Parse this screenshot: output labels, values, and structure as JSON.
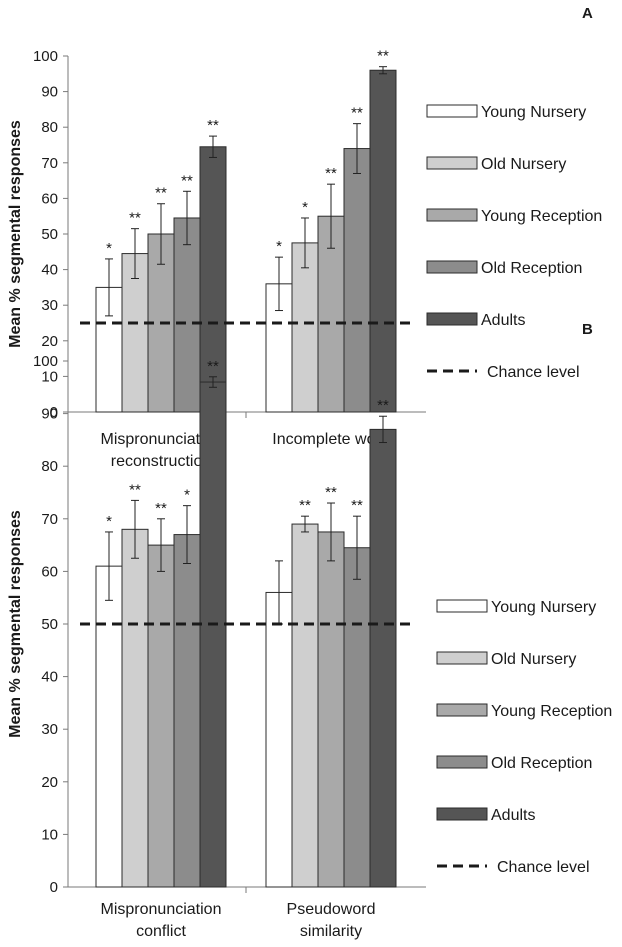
{
  "chart_data": [
    {
      "type": "bar",
      "panel_label": "A",
      "ylabel": "Mean % segmental responses",
      "ylim": [
        0,
        100
      ],
      "yticks": [
        0,
        10,
        20,
        30,
        40,
        50,
        60,
        70,
        80,
        90,
        100
      ],
      "categories": [
        [
          "Mispronunciation",
          "reconstruction"
        ],
        [
          "Incomplete word"
        ]
      ],
      "chance_level": 25,
      "legend_position": "right",
      "series": [
        {
          "name": "Young Nursery",
          "color": "#ffffff",
          "values": [
            35,
            36
          ],
          "errors": [
            8,
            7.5
          ],
          "sig": [
            "*",
            "*"
          ]
        },
        {
          "name": "Old Nursery",
          "color": "#cfcfcf",
          "values": [
            44.5,
            47.5
          ],
          "errors": [
            7,
            7
          ],
          "sig": [
            "**",
            "*"
          ]
        },
        {
          "name": "Young Reception",
          "color": "#a9a9a9",
          "values": [
            50,
            55
          ],
          "errors": [
            8.5,
            9
          ],
          "sig": [
            "**",
            "**"
          ]
        },
        {
          "name": "Old Reception",
          "color": "#8c8c8c",
          "values": [
            54.5,
            74
          ],
          "errors": [
            7.5,
            7
          ],
          "sig": [
            "**",
            "**"
          ]
        },
        {
          "name": "Adults",
          "color": "#555555",
          "values": [
            74.5,
            96
          ],
          "errors": [
            3,
            1
          ],
          "sig": [
            "**",
            "**"
          ]
        }
      ],
      "chance_label": "Chance level"
    },
    {
      "type": "bar",
      "panel_label": "B",
      "ylabel": "Mean % segmental responses",
      "ylim": [
        0,
        100
      ],
      "yticks": [
        0,
        10,
        20,
        30,
        40,
        50,
        60,
        70,
        80,
        90,
        100
      ],
      "categories": [
        [
          "Mispronunciation",
          "conflict"
        ],
        [
          "Pseudoword",
          "similarity"
        ]
      ],
      "chance_level": 50,
      "legend_position": "right",
      "series": [
        {
          "name": "Young Nursery",
          "color": "#ffffff",
          "values": [
            61,
            56
          ],
          "errors": [
            6.5,
            6
          ],
          "sig": [
            "*",
            ""
          ]
        },
        {
          "name": "Old Nursery",
          "color": "#cfcfcf",
          "values": [
            68,
            69
          ],
          "errors": [
            5.5,
            1.5
          ],
          "sig": [
            "**",
            "**"
          ]
        },
        {
          "name": "Young Reception",
          "color": "#a9a9a9",
          "values": [
            65,
            67.5
          ],
          "errors": [
            5,
            5.5
          ],
          "sig": [
            "**",
            "**"
          ]
        },
        {
          "name": "Old Reception",
          "color": "#8c8c8c",
          "values": [
            67,
            64.5
          ],
          "errors": [
            5.5,
            6
          ],
          "sig": [
            "*",
            "**"
          ]
        },
        {
          "name": "Adults",
          "color": "#555555",
          "values": [
            96,
            87
          ],
          "errors": [
            1,
            2.5
          ],
          "sig": [
            "**",
            "**"
          ]
        }
      ],
      "chance_label": "Chance level"
    }
  ]
}
